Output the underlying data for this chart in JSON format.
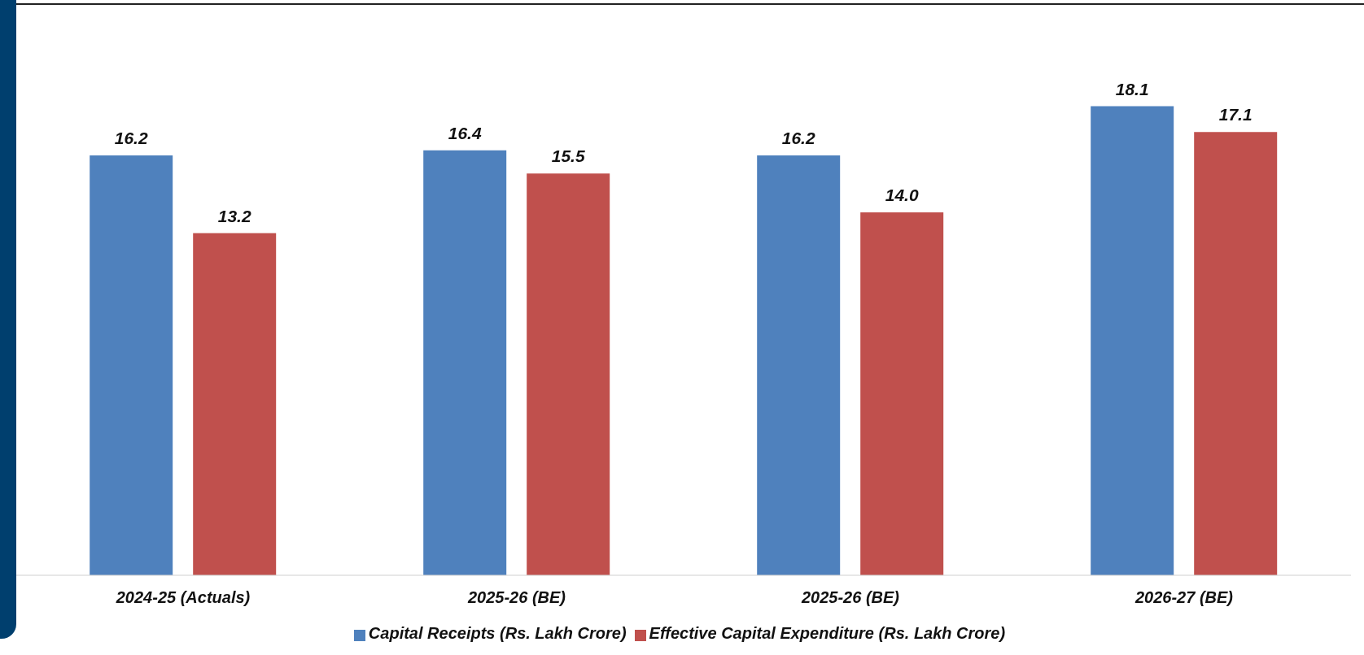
{
  "chart_data": {
    "type": "bar",
    "categories": [
      "2024-25 (Actuals)",
      "2025-26 (BE)",
      "2025-26 (BE)",
      "2026-27 (BE)"
    ],
    "series": [
      {
        "name": "Capital Receipts (Rs. Lakh Crore)",
        "color": "#4f81bd",
        "values": [
          16.2,
          16.4,
          16.2,
          18.1
        ],
        "value_labels": [
          "16.2",
          "16.4",
          "16.2",
          "18.1"
        ]
      },
      {
        "name": "Effective Capital Expenditure (Rs. Lakh Crore)",
        "color": "#c0504d",
        "values": [
          13.2,
          15.5,
          14.0,
          17.1
        ],
        "value_labels": [
          "13.2",
          "15.5",
          "14.0",
          "17.1"
        ]
      }
    ],
    "legend": "bottom",
    "grid": false,
    "tick_labels": "x"
  }
}
